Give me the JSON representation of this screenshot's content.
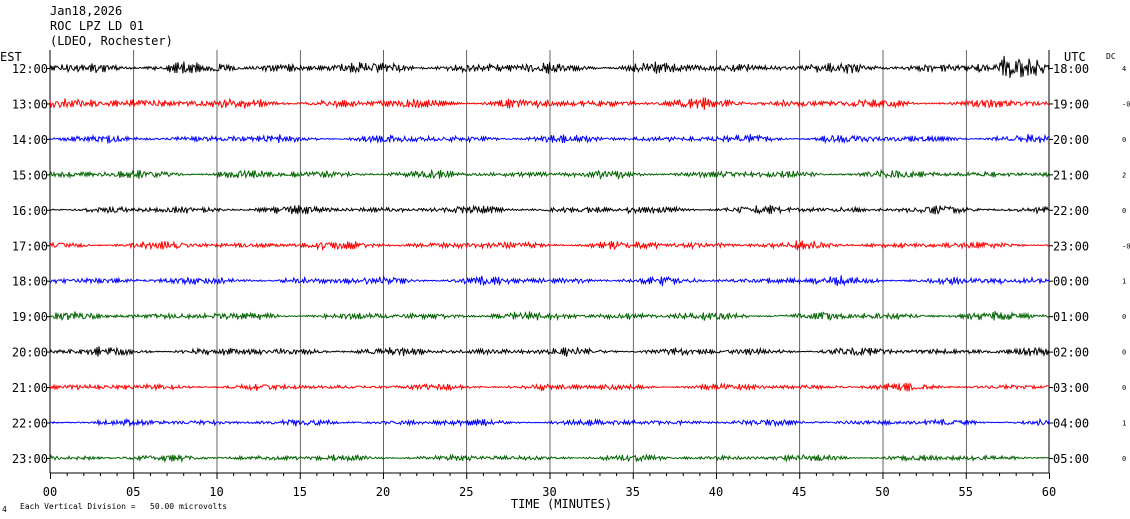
{
  "header": {
    "date": "Jan18,2026",
    "station": "ROC LPZ LD 01",
    "network": "(LDEO, Rochester)"
  },
  "left_zone": "EST",
  "right_zone": "UTC",
  "dc_label": "DC",
  "footer": {
    "scale_note": "Each Vertical Division =   50.00 microvolts",
    "corner_mark": "4"
  },
  "colors": {
    "black": "#000000",
    "red": "#ff0000",
    "blue": "#0000ff",
    "green": "#006400",
    "grid": "#000000"
  },
  "chart_data": {
    "type": "line",
    "xlabel": "TIME (MINUTES)",
    "xlim": [
      0,
      60
    ],
    "x_ticks": [
      "00",
      "05",
      "10",
      "15",
      "20",
      "25",
      "30",
      "35",
      "40",
      "45",
      "50",
      "55",
      "60"
    ],
    "series": [
      {
        "est": "12:00",
        "utc": "18:00",
        "dc": "4",
        "color": "black",
        "amp": 7,
        "burst": [
          57,
          60,
          2.2
        ]
      },
      {
        "est": "13:00",
        "utc": "19:00",
        "dc": "-0",
        "color": "red",
        "amp": 6,
        "burst": [
          2,
          9,
          1.4
        ]
      },
      {
        "est": "14:00",
        "utc": "20:00",
        "dc": "0",
        "color": "blue",
        "amp": 5,
        "burst": [
          46,
          48,
          1.3
        ]
      },
      {
        "est": "15:00",
        "utc": "21:00",
        "dc": "2",
        "color": "green",
        "amp": 5,
        "burst": [
          10,
          12,
          1.4
        ]
      },
      {
        "est": "16:00",
        "utc": "22:00",
        "dc": "0",
        "color": "black",
        "amp": 5,
        "burst": [
          28,
          29,
          1.2
        ]
      },
      {
        "est": "17:00",
        "utc": "23:00",
        "dc": "-0",
        "color": "red",
        "amp": 5,
        "burst": [
          18,
          20,
          1.2
        ]
      },
      {
        "est": "18:00",
        "utc": "00:00",
        "dc": "1",
        "color": "blue",
        "amp": 5,
        "burst": [
          46,
          48,
          1.3
        ]
      },
      {
        "est": "19:00",
        "utc": "01:00",
        "dc": "0",
        "color": "green",
        "amp": 5,
        "burst": [
          46,
          47,
          1.3
        ]
      },
      {
        "est": "20:00",
        "utc": "02:00",
        "dc": "0",
        "color": "black",
        "amp": 5,
        "burst": [
          55,
          56,
          1.2
        ]
      },
      {
        "est": "21:00",
        "utc": "03:00",
        "dc": "0",
        "color": "red",
        "amp": 4,
        "burst": [
          29,
          30,
          1.5
        ]
      },
      {
        "est": "22:00",
        "utc": "04:00",
        "dc": "1",
        "color": "blue",
        "amp": 4,
        "burst": [
          39,
          40,
          1.3
        ]
      },
      {
        "est": "23:00",
        "utc": "05:00",
        "dc": "0",
        "color": "green",
        "amp": 4,
        "burst": [
          47,
          48,
          1.2
        ]
      }
    ]
  }
}
